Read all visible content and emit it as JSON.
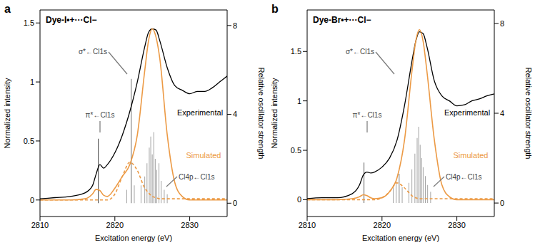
{
  "chart_data": [
    {
      "type": "line",
      "label": "a",
      "title": "Dye-I•+···Cl−",
      "x_label": "Excitation energy (eV)",
      "y_label": "Normalized intensity",
      "y2_label": "Relative oscillator strength",
      "xlim": [
        2810,
        2835
      ],
      "xticks": [
        2810,
        2820,
        2830
      ],
      "ylim": [
        -0.14,
        1.61
      ],
      "yticks": [
        0,
        0.5,
        1,
        1.5
      ],
      "y2lim": [
        -0.6,
        8.7
      ],
      "y2ticks": [
        0,
        4,
        8
      ],
      "annotations": [
        "π*←Cl1s",
        "σ*←Cl1s",
        "Cl4p←Cl1s"
      ],
      "x": [
        2810,
        2812,
        2814,
        2816,
        2817,
        2817.5,
        2818,
        2818.5,
        2819,
        2820,
        2821,
        2822,
        2823,
        2824,
        2824.5,
        2825,
        2825.5,
        2826,
        2827,
        2828,
        2829,
        2830,
        2831,
        2832,
        2833,
        2834,
        2835
      ],
      "series": [
        {
          "name": "Experimental",
          "color": "#000000",
          "values": [
            0.01,
            0.02,
            0.03,
            0.06,
            0.12,
            0.22,
            0.3,
            0.27,
            0.3,
            0.4,
            0.55,
            0.75,
            1.0,
            1.3,
            1.42,
            1.45,
            1.44,
            1.35,
            1.12,
            0.97,
            0.93,
            0.9,
            0.92,
            0.92,
            0.95,
            1.0,
            1.05
          ]
        },
        {
          "name": "Simulated",
          "color": "#ec9a45",
          "values": [
            0,
            0,
            0,
            0.01,
            0.05,
            0.09,
            0.08,
            0.04,
            0.03,
            0.1,
            0.2,
            0.3,
            0.55,
            1.1,
            1.35,
            1.45,
            1.38,
            1.2,
            0.55,
            0.15,
            0.03,
            0,
            0,
            0,
            0,
            0,
            0
          ]
        },
        {
          "color": "#ec9a45",
          "line_style": "dashed",
          "values": [
            0,
            0,
            0,
            0,
            0,
            0,
            0,
            0,
            0,
            0.05,
            0.2,
            0.32,
            0.25,
            0.1,
            0.06,
            0.03,
            0.02,
            0.01,
            0.01,
            0.01,
            0.01,
            0.01,
            0.01,
            0.01,
            0.01,
            0.01,
            0.01
          ]
        }
      ],
      "sticks": {
        "type": "bar",
        "axis": "y2",
        "x": [
          2817.8,
          2821.6,
          2822.2,
          2822.6,
          2823.5,
          2824.0,
          2824.3,
          2824.6,
          2824.8,
          2825.0,
          2825.2,
          2825.4,
          2825.6,
          2825.9,
          2826.2,
          2826.6,
          2827.0
        ],
        "values": [
          2.9,
          0.6,
          5.6,
          0.8,
          0.8,
          1.2,
          1.8,
          2.5,
          3.0,
          2.2,
          3.2,
          2.0,
          1.5,
          1.8,
          1.0,
          0.6,
          0.4
        ],
        "colors": [
          "#333333",
          "#9e9e9e",
          "#666666",
          "#9e9e9e",
          "#9e9e9e",
          "#9e9e9e",
          "#9e9e9e",
          "#9e9e9e",
          "#9e9e9e",
          "#9e9e9e",
          "#9e9e9e",
          "#9e9e9e",
          "#9e9e9e",
          "#9e9e9e",
          "#9e9e9e",
          "#9e9e9e",
          "#9e9e9e"
        ]
      }
    },
    {
      "type": "line",
      "label": "b",
      "title": "Dye-Br•+···Cl−",
      "x_label": "Excitation energy (eV)",
      "y_label": "Normalized intensity",
      "y2_label": "Relative oscillator strength",
      "xlim": [
        2810,
        2835
      ],
      "xticks": [
        2810,
        2820,
        2830
      ],
      "ylim": [
        -0.17,
        1.92
      ],
      "yticks": [
        0,
        0.5,
        1,
        1.5
      ],
      "y2lim": [
        -0.6,
        8.6
      ],
      "y2ticks": [
        0,
        4,
        8
      ],
      "annotations": [
        "π*←Cl1s",
        "σ*←Cl1s",
        "Cl4p←Cl1s"
      ],
      "x": [
        2810,
        2812,
        2814,
        2816,
        2817,
        2817.5,
        2818,
        2818.5,
        2819,
        2820,
        2821,
        2822,
        2823,
        2824,
        2824.5,
        2825,
        2825.5,
        2826,
        2827,
        2828,
        2829,
        2830,
        2831,
        2832,
        2833,
        2834,
        2835
      ],
      "series": [
        {
          "name": "Experimental",
          "color": "#000000",
          "values": [
            0.01,
            0.02,
            0.02,
            0.06,
            0.15,
            0.25,
            0.28,
            0.27,
            0.28,
            0.33,
            0.42,
            0.6,
            0.95,
            1.4,
            1.6,
            1.7,
            1.68,
            1.55,
            1.2,
            1.05,
            1.0,
            0.95,
            0.96,
            1.0,
            1.02,
            1.05,
            1.07
          ]
        },
        {
          "name": "Simulated",
          "color": "#ec9a45",
          "values": [
            0,
            0,
            0,
            0.01,
            0.03,
            0.05,
            0.04,
            0.02,
            0.01,
            0.02,
            0.08,
            0.22,
            0.6,
            1.3,
            1.6,
            1.72,
            1.6,
            1.3,
            0.6,
            0.15,
            0.03,
            0,
            0,
            0,
            0,
            0,
            0
          ]
        },
        {
          "color": "#ec9a45",
          "line_style": "dashed",
          "values": [
            0,
            0,
            0,
            0,
            0,
            0,
            0,
            0,
            0,
            0.02,
            0.08,
            0.17,
            0.12,
            0.04,
            0.02,
            0.01,
            0.01,
            0.01,
            0.01,
            0.01,
            0.01,
            0.01,
            0.01,
            0.01,
            0.01,
            0.01,
            0.01
          ]
        }
      ],
      "sticks": {
        "type": "bar",
        "axis": "y2",
        "x": [
          2817.6,
          2821.5,
          2821.9,
          2822.3,
          2822.7,
          2823.6,
          2824.0,
          2824.4,
          2824.7,
          2824.9,
          2825.1,
          2825.3,
          2825.5,
          2825.8,
          2826.1,
          2826.5
        ],
        "values": [
          1.8,
          0.8,
          1.0,
          1.3,
          0.7,
          0.9,
          1.5,
          2.2,
          2.9,
          3.4,
          2.6,
          2.0,
          1.6,
          1.2,
          0.8,
          0.5
        ],
        "colors": [
          "#555555",
          "#9e9e9e",
          "#9e9e9e",
          "#777777",
          "#9e9e9e",
          "#9e9e9e",
          "#9e9e9e",
          "#9e9e9e",
          "#9e9e9e",
          "#9e9e9e",
          "#9e9e9e",
          "#9e9e9e",
          "#9e9e9e",
          "#9e9e9e",
          "#9e9e9e",
          "#9e9e9e"
        ]
      }
    }
  ]
}
